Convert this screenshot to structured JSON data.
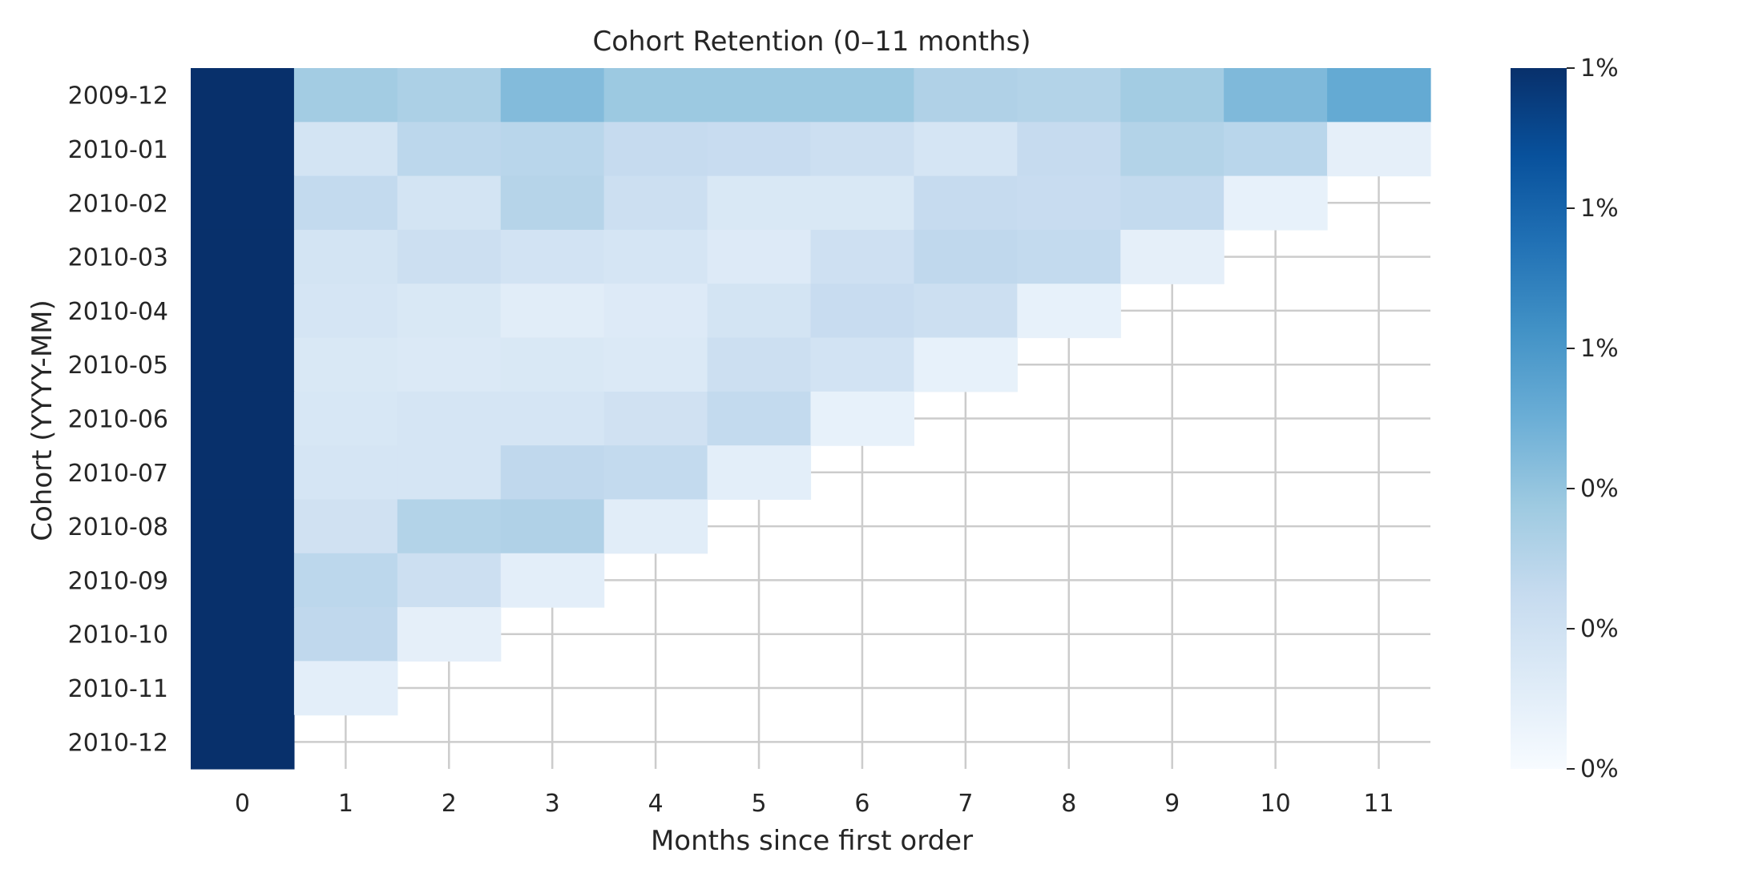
{
  "chart_data": {
    "type": "heatmap",
    "title": "Cohort Retention (0–11 months)",
    "xlabel": "Months since first order",
    "ylabel": "Cohort (YYYY-MM)",
    "x_categories": [
      "0",
      "1",
      "2",
      "3",
      "4",
      "5",
      "6",
      "7",
      "8",
      "9",
      "10",
      "11"
    ],
    "y_categories": [
      "2009-12",
      "2010-01",
      "2010-02",
      "2010-03",
      "2010-04",
      "2010-05",
      "2010-06",
      "2010-07",
      "2010-08",
      "2010-09",
      "2010-10",
      "2010-11",
      "2010-12"
    ],
    "values": [
      [
        1.0,
        0.36,
        0.33,
        0.44,
        0.38,
        0.38,
        0.38,
        0.32,
        0.31,
        0.36,
        0.45,
        0.52
      ],
      [
        1.0,
        0.18,
        0.28,
        0.29,
        0.25,
        0.24,
        0.22,
        0.17,
        0.25,
        0.31,
        0.29,
        0.09
      ],
      [
        1.0,
        0.26,
        0.18,
        0.3,
        0.22,
        0.15,
        0.15,
        0.25,
        0.24,
        0.26,
        0.08,
        null
      ],
      [
        1.0,
        0.18,
        0.22,
        0.19,
        0.17,
        0.13,
        0.21,
        0.27,
        0.26,
        0.09,
        null,
        null
      ],
      [
        1.0,
        0.17,
        0.15,
        0.11,
        0.13,
        0.18,
        0.24,
        0.22,
        0.08,
        null,
        null,
        null
      ],
      [
        1.0,
        0.15,
        0.14,
        0.15,
        0.14,
        0.22,
        0.19,
        0.08,
        null,
        null,
        null,
        null
      ],
      [
        1.0,
        0.16,
        0.17,
        0.17,
        0.2,
        0.26,
        0.08,
        null,
        null,
        null,
        null,
        null
      ],
      [
        1.0,
        0.17,
        0.17,
        0.27,
        0.26,
        0.1,
        null,
        null,
        null,
        null,
        null,
        null
      ],
      [
        1.0,
        0.2,
        0.31,
        0.32,
        0.11,
        null,
        null,
        null,
        null,
        null,
        null,
        null
      ],
      [
        1.0,
        0.28,
        0.22,
        0.1,
        null,
        null,
        null,
        null,
        null,
        null,
        null,
        null
      ],
      [
        1.0,
        0.27,
        0.09,
        null,
        null,
        null,
        null,
        null,
        null,
        null,
        null,
        null
      ],
      [
        1.0,
        0.1,
        null,
        null,
        null,
        null,
        null,
        null,
        null,
        null,
        null,
        null
      ],
      [
        1.0,
        null,
        null,
        null,
        null,
        null,
        null,
        null,
        null,
        null,
        null,
        null
      ]
    ],
    "colormap": "Blues",
    "colorbar": {
      "tick_labels": [
        "1%",
        "1%",
        "1%",
        "0%",
        "0%",
        "0%"
      ]
    },
    "grid": true
  }
}
